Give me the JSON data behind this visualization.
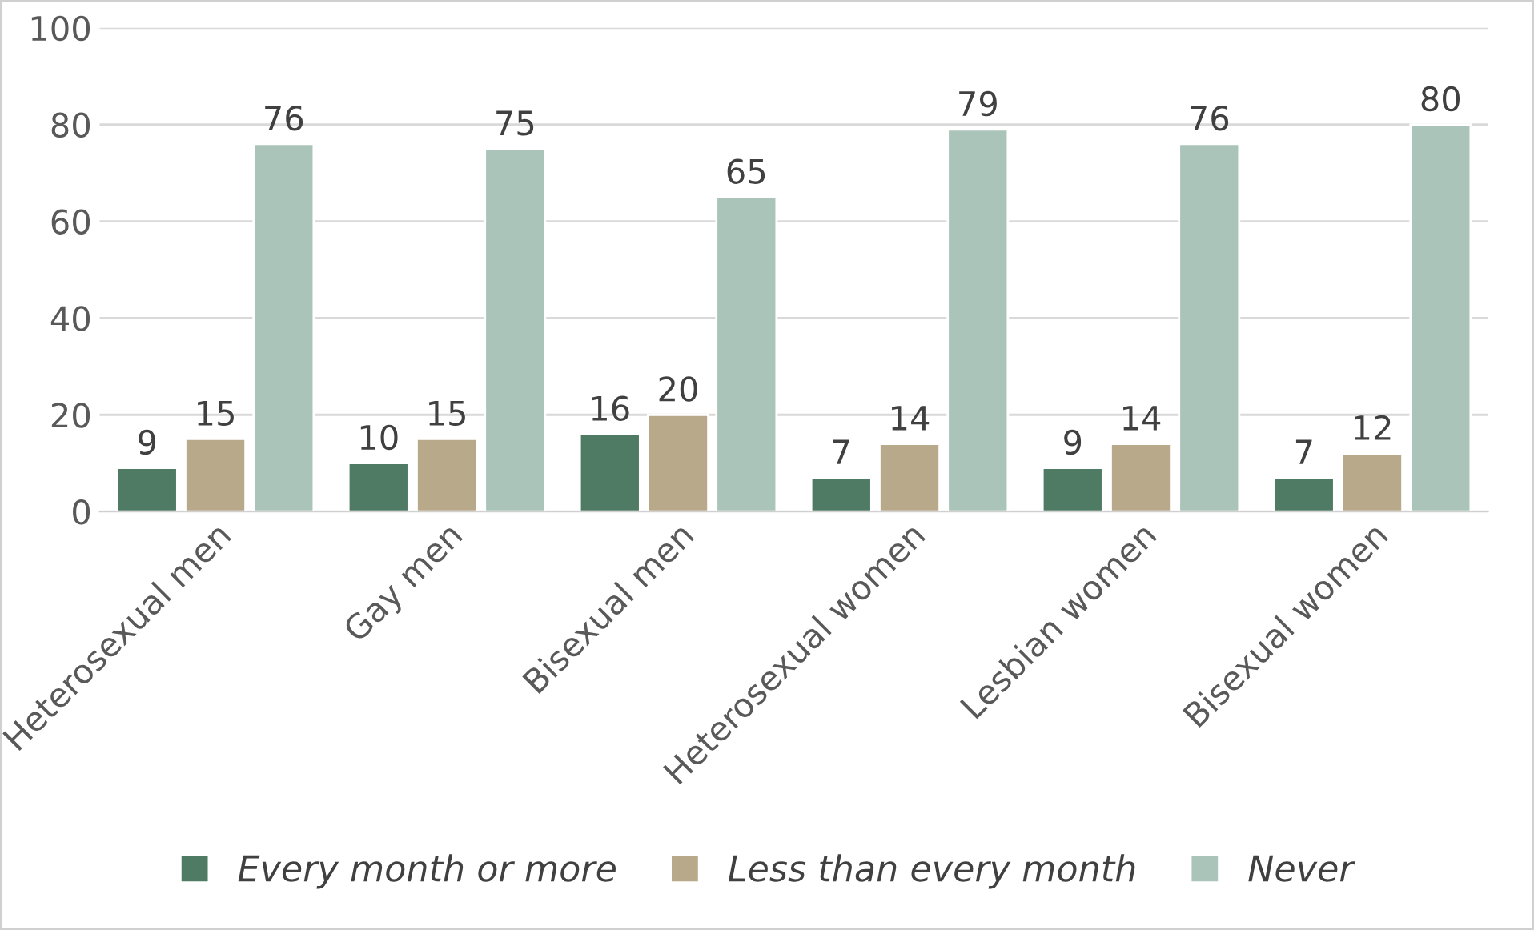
{
  "chart_data": {
    "type": "bar",
    "categories": [
      "Heterosexual men",
      "Gay men",
      "Bisexual men",
      "Heterosexual women",
      "Lesbian women",
      "Bisexual women"
    ],
    "series": [
      {
        "name": "Every month or more",
        "color": "#4f7a64",
        "values": [
          9,
          10,
          16,
          7,
          9,
          7
        ]
      },
      {
        "name": "Less than every month",
        "color": "#b8a98a",
        "values": [
          15,
          15,
          20,
          14,
          14,
          12
        ]
      },
      {
        "name": "Never",
        "color": "#abc4b9",
        "values": [
          76,
          75,
          65,
          79,
          76,
          80
        ]
      }
    ],
    "ylim": [
      0,
      100
    ],
    "yticks": [
      0,
      20,
      40,
      60,
      80,
      100
    ],
    "grid": "y",
    "legend": "bottom",
    "data_labels": true
  }
}
